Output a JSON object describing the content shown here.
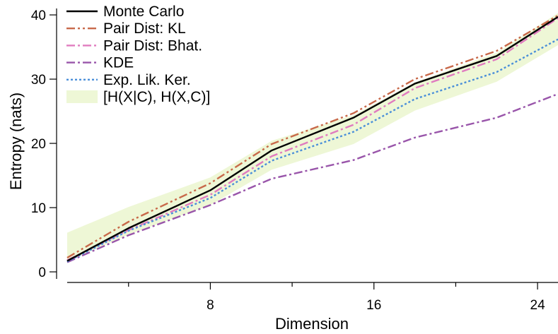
{
  "chart_data": {
    "type": "line",
    "title": "",
    "xlabel": "Dimension",
    "ylabel": "Entropy (nats)",
    "xlim": [
      1,
      25
    ],
    "ylim": [
      0,
      41
    ],
    "x_ticks": [
      8,
      16,
      24
    ],
    "x_minor_ticks": [
      4,
      12,
      20
    ],
    "y_ticks": [
      0,
      10,
      20,
      30,
      40
    ],
    "grid": false,
    "legend": "top-left",
    "x": [
      1,
      4,
      8,
      11,
      15,
      18,
      22,
      25
    ],
    "series": [
      {
        "name": "Monte Carlo",
        "color": "#000000",
        "dash": "solid",
        "values": [
          1.7,
          6.8,
          12.7,
          18.9,
          24.0,
          29.3,
          33.6,
          39.7
        ]
      },
      {
        "name": "Pair Dist: KL",
        "color": "#c8694a",
        "dash": "dashdotdot",
        "values": [
          2.2,
          7.8,
          13.8,
          19.9,
          24.7,
          30.0,
          34.4,
          39.9
        ]
      },
      {
        "name": "Pair Dist: Bhat.",
        "color": "#e07bbf",
        "dash": "dashdot",
        "values": [
          1.8,
          6.5,
          12.0,
          18.0,
          22.9,
          28.6,
          33.1,
          39.5
        ]
      },
      {
        "name": "KDE",
        "color": "#9955aa",
        "dash": "dashdot",
        "values": [
          1.5,
          5.7,
          10.4,
          14.5,
          17.4,
          20.9,
          24.0,
          27.7
        ]
      },
      {
        "name": "Exp. Lik. Ker.",
        "color": "#4a8fd9",
        "dash": "dotted",
        "values": [
          1.6,
          6.4,
          11.5,
          17.3,
          21.8,
          26.9,
          31.1,
          36.2
        ]
      }
    ],
    "band": {
      "name": "[H(X|C), H(X,C)]",
      "color": "#eef7d6",
      "x": [
        1,
        4,
        8,
        11,
        15,
        18,
        22,
        25
      ],
      "lower": [
        1.6,
        5.8,
        10.4,
        15.9,
        19.9,
        25.1,
        29.6,
        35.3
      ],
      "upper": [
        6.1,
        10.1,
        14.7,
        20.4,
        24.4,
        29.5,
        34.1,
        40.3
      ]
    }
  }
}
